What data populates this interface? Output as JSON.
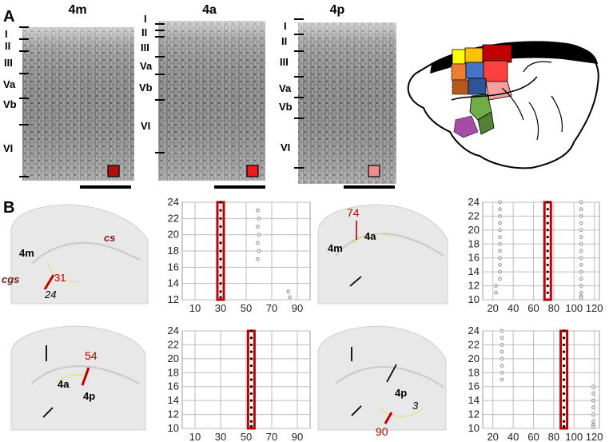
{
  "figure": {
    "panel_labels": [
      "A",
      "B"
    ],
    "panel_a": {
      "columns": [
        {
          "title": "4m",
          "layers": [
            "I",
            "II",
            "III",
            "Va",
            "Vb",
            "VI"
          ],
          "swatch_color": "#b01010"
        },
        {
          "title": "4a",
          "layers": [
            "I",
            "II",
            "III",
            "Va",
            "Vb",
            "VI"
          ],
          "swatch_color": "#ee1c1c"
        },
        {
          "title": "4p",
          "layers": [
            "I",
            "II",
            "III",
            "Va",
            "Vb",
            "VI"
          ],
          "swatch_color": "#f28b8b"
        }
      ],
      "brain_colors": [
        "#000000",
        "#c00000",
        "#ffc000",
        "#ffff00",
        "#ed7d31",
        "#4472c4",
        "#ff4040",
        "#70ad47",
        "#a64ca6",
        "#f4a0a0"
      ]
    },
    "panel_b": {
      "sections": [
        {
          "labels": [
            "4m",
            "cs",
            "cgs",
            "31",
            "24"
          ]
        },
        {
          "labels": [
            "74",
            "4a",
            "4m"
          ]
        },
        {
          "labels": [
            "54",
            "4a",
            "4p"
          ]
        },
        {
          "labels": [
            "4p",
            "3",
            "90"
          ]
        }
      ]
    }
  },
  "chart_data": [
    {
      "type": "scatter",
      "x_ticks": [
        10,
        30,
        50,
        70,
        90
      ],
      "y_ticks": [
        12,
        14,
        16,
        18,
        20,
        22,
        24
      ],
      "xlim": [
        0,
        100
      ],
      "ylim": [
        12,
        24
      ],
      "grid": true,
      "highlight_x": 30,
      "series": [
        {
          "style": "selected",
          "x": [
            30,
            30,
            30,
            30,
            30,
            30,
            30,
            30,
            30,
            30,
            30,
            30,
            30
          ],
          "y": [
            24,
            23,
            22,
            21,
            20,
            19,
            18,
            17,
            16,
            15,
            14,
            13,
            12.3
          ]
        },
        {
          "style": "other",
          "x": [
            59,
            60,
            59,
            60,
            59,
            60,
            59,
            83,
            84
          ],
          "y": [
            23,
            22,
            21,
            20,
            19,
            18,
            17,
            13,
            12.3
          ]
        }
      ]
    },
    {
      "type": "scatter",
      "x_ticks": [
        20,
        40,
        60,
        80,
        100,
        120
      ],
      "y_ticks": [
        10,
        12,
        14,
        16,
        18,
        20,
        22,
        24
      ],
      "xlim": [
        10,
        125
      ],
      "ylim": [
        10,
        24
      ],
      "grid": true,
      "highlight_x": 74,
      "series": [
        {
          "style": "selected",
          "x": [
            74,
            74,
            74,
            74,
            74,
            74,
            74,
            74,
            74,
            74,
            74,
            74,
            74,
            74
          ],
          "y": [
            24,
            23,
            22,
            21,
            20,
            19,
            18,
            17,
            16,
            15,
            14,
            13,
            12,
            11
          ]
        },
        {
          "style": "other",
          "x": [
            27,
            27,
            27,
            27,
            27,
            27,
            27,
            27,
            27,
            27,
            27,
            27,
            23,
            23,
            107,
            107,
            107,
            107,
            107,
            107,
            107,
            107,
            107,
            107,
            107,
            107,
            107,
            107,
            107,
            107
          ],
          "y": [
            24,
            23,
            22,
            21,
            20,
            19,
            18,
            17,
            16,
            15,
            14,
            13,
            12,
            11,
            24,
            23,
            22,
            21,
            20,
            19,
            18,
            17,
            16,
            15,
            14,
            13,
            12,
            11,
            10.5,
            10.2
          ]
        }
      ]
    },
    {
      "type": "scatter",
      "x_ticks": [
        10,
        30,
        50,
        70,
        90
      ],
      "y_ticks": [
        10,
        12,
        14,
        16,
        18,
        20,
        22,
        24
      ],
      "xlim": [
        0,
        100
      ],
      "ylim": [
        10,
        24
      ],
      "grid": true,
      "highlight_x": 54,
      "series": [
        {
          "style": "selected",
          "x": [
            54,
            54,
            54,
            54,
            54,
            54,
            54,
            54,
            54,
            54,
            54,
            54,
            54,
            54,
            54
          ],
          "y": [
            24,
            23,
            22,
            21,
            20,
            19,
            18,
            17,
            16,
            15,
            14,
            13,
            12,
            11,
            10.3
          ]
        }
      ]
    },
    {
      "type": "scatter",
      "x_ticks": [
        20,
        40,
        60,
        80,
        100,
        120
      ],
      "y_ticks": [
        10,
        12,
        14,
        16,
        18,
        20,
        22,
        24
      ],
      "xlim": [
        10,
        125
      ],
      "ylim": [
        10,
        24
      ],
      "grid": true,
      "highlight_x": 90,
      "series": [
        {
          "style": "selected",
          "x": [
            90,
            90,
            90,
            90,
            90,
            90,
            90,
            90,
            90,
            90,
            90,
            90,
            90,
            90,
            90
          ],
          "y": [
            24,
            23,
            22,
            21,
            20,
            19,
            18,
            17,
            16,
            15,
            14,
            13,
            12,
            11,
            10.3
          ]
        },
        {
          "style": "other",
          "x": [
            29,
            29,
            29,
            29,
            29,
            29,
            29,
            29,
            119,
            119,
            119,
            119,
            119,
            119,
            119,
            119
          ],
          "y": [
            24,
            23,
            22,
            21,
            20,
            19,
            18,
            17,
            16,
            15,
            14,
            13,
            12,
            11,
            10.5,
            10.2
          ]
        }
      ]
    }
  ]
}
